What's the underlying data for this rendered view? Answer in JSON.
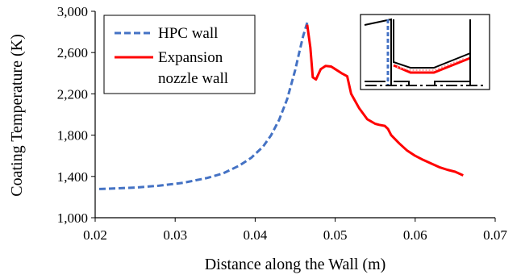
{
  "chart_data": {
    "type": "line",
    "xlabel": "Distance along the Wall (m)",
    "ylabel": "Coating Temperature (K)",
    "xlim": [
      0.02,
      0.07
    ],
    "ylim": [
      1000,
      3000
    ],
    "x_ticks": [
      0.02,
      0.03,
      0.04,
      0.05,
      0.06,
      0.07
    ],
    "x_tick_labels": [
      "0.02",
      "0.03",
      "0.04",
      "0.05",
      "0.06",
      "0.07"
    ],
    "y_ticks": [
      1000,
      1400,
      1800,
      2200,
      2600,
      3000
    ],
    "y_tick_labels": [
      "1,000",
      "1,400",
      "1,800",
      "2,200",
      "2,600",
      "3,000"
    ],
    "grid": false,
    "legend_position": "top-left",
    "inset": "schematic of wall geometry (top-right)",
    "series": [
      {
        "name": "HPC wall",
        "color": "#4472C4",
        "style": "dashed",
        "x": [
          0.0205,
          0.022,
          0.025,
          0.028,
          0.031,
          0.034,
          0.036,
          0.038,
          0.0395,
          0.041,
          0.042,
          0.043,
          0.044,
          0.045,
          0.0455,
          0.046,
          0.0465
        ],
        "y": [
          1278,
          1282,
          1292,
          1310,
          1338,
          1385,
          1430,
          1505,
          1580,
          1690,
          1800,
          1950,
          2150,
          2430,
          2600,
          2760,
          2890
        ]
      },
      {
        "name": "Expansion\nnozzle wall",
        "legend_lines": [
          "Expansion",
          "nozzle wall"
        ],
        "color": "#FF0000",
        "style": "solid",
        "x": [
          0.0465,
          0.0469,
          0.0472,
          0.0476,
          0.0482,
          0.0488,
          0.0495,
          0.05,
          0.0508,
          0.0515,
          0.052,
          0.053,
          0.054,
          0.055,
          0.0555,
          0.0562,
          0.0566,
          0.057,
          0.058,
          0.059,
          0.06,
          0.061,
          0.062,
          0.063,
          0.064,
          0.065,
          0.066
        ],
        "y": [
          2870,
          2650,
          2360,
          2340,
          2440,
          2470,
          2465,
          2440,
          2400,
          2370,
          2200,
          2060,
          1955,
          1910,
          1900,
          1890,
          1860,
          1800,
          1720,
          1650,
          1600,
          1560,
          1525,
          1490,
          1465,
          1445,
          1410
        ]
      }
    ]
  }
}
